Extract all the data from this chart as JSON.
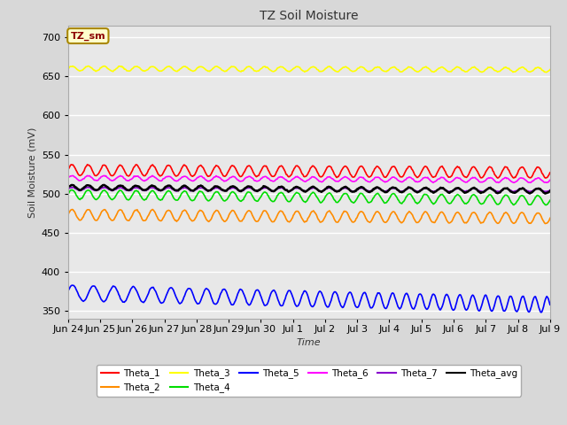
{
  "title": "TZ Soil Moisture",
  "xlabel": "Time",
  "ylabel": "Soil Moisture (mV)",
  "ylim": [
    340,
    715
  ],
  "yticks": [
    350,
    400,
    450,
    500,
    550,
    600,
    650,
    700
  ],
  "background_color": "#d8d8d8",
  "plot_bg_color": "#e8e8e8",
  "legend_box_label": "TZ_sm",
  "legend_box_color": "#ffffcc",
  "legend_box_text_color": "#8b0000",
  "series_order": [
    "Theta_1",
    "Theta_2",
    "Theta_3",
    "Theta_4",
    "Theta_5",
    "Theta_6",
    "Theta_7",
    "Theta_avg"
  ],
  "series": {
    "Theta_1": {
      "color": "#ff0000",
      "base": 530,
      "amp": 7,
      "freq": 2.0,
      "trend": -0.2
    },
    "Theta_2": {
      "color": "#ff8c00",
      "base": 473,
      "amp": 7,
      "freq": 2.0,
      "trend": -0.3
    },
    "Theta_3": {
      "color": "#ffff00",
      "base": 660,
      "amp": 3,
      "freq": 2.0,
      "trend": -0.1
    },
    "Theta_4": {
      "color": "#00dd00",
      "base": 499,
      "amp": 6,
      "freq": 2.0,
      "trend": -0.5
    },
    "Theta_5": {
      "color": "#0000ff",
      "base": 373,
      "amp": 10,
      "freq": 1.5,
      "trend": -1.0
    },
    "Theta_6": {
      "color": "#ff00ff",
      "base": 520,
      "amp": 3,
      "freq": 2.0,
      "trend": -0.2
    },
    "Theta_7": {
      "color": "#8800cc",
      "base": 506,
      "amp": 2,
      "freq": 2.0,
      "trend": -0.1
    },
    "Theta_avg": {
      "color": "#000000",
      "base": 508,
      "amp": 3,
      "freq": 2.0,
      "trend": -0.3
    }
  },
  "xtick_labels": [
    "Jun 24",
    "Jun 25",
    "Jun 26",
    "Jun 27",
    "Jun 28",
    "Jun 29",
    "Jun 30",
    "Jul 1",
    "Jul 2",
    "Jul 3",
    "Jul 4",
    "Jul 5",
    "Jul 6",
    "Jul 7",
    "Jul 8",
    "Jul 9"
  ],
  "n_points": 600
}
